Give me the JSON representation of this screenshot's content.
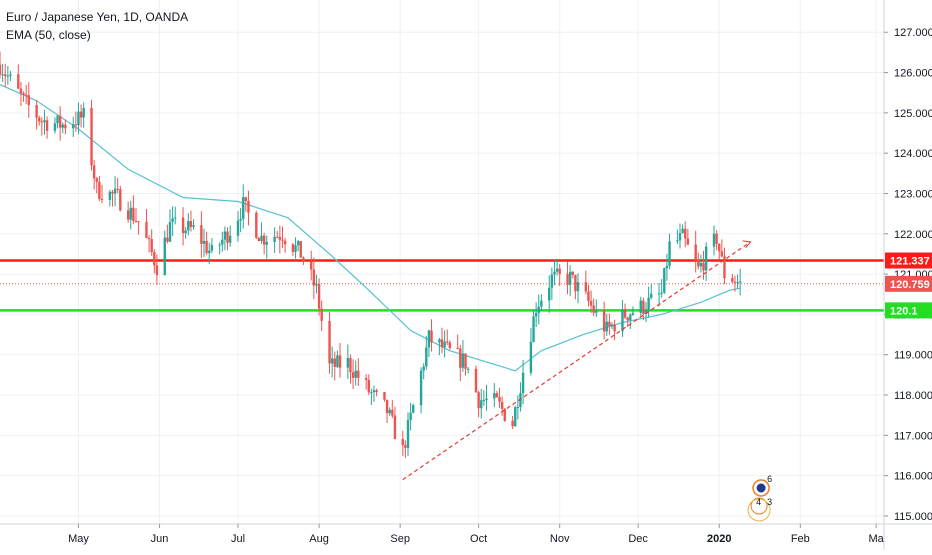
{
  "header": {
    "symbol_title": "Euro / Japanese Yen, 1D, OANDA",
    "indicator": "EMA (50, close)"
  },
  "colors": {
    "up": "#26a69a",
    "down": "#ef5350",
    "ema": "#56c1d2",
    "resistance": "#ff1a1a",
    "support": "#22dd22",
    "trendline": "#e53935",
    "price_line": "#ef5350",
    "grid": "#eef0f4"
  },
  "chart_data": {
    "type": "candlestick",
    "symbol": "Euro / Japanese Yen",
    "timeframe": "1D",
    "source": "OANDA",
    "ylim": [
      114.8,
      127.8
    ],
    "y_ticks": [
      115,
      116,
      117,
      118,
      119,
      120,
      121,
      122,
      123,
      124,
      125,
      126,
      127
    ],
    "y_tick_labels": [
      "115.000",
      "116.000",
      "117.000",
      "118.000",
      "119.000",
      "120.000",
      "121.000",
      "122.000",
      "123.000",
      "124.000",
      "125.000",
      "126.000",
      "127.000"
    ],
    "x_labels": [
      {
        "label": "May",
        "date": "2019-05-01"
      },
      {
        "label": "Jun",
        "date": "2019-06-01"
      },
      {
        "label": "Jul",
        "date": "2019-07-01"
      },
      {
        "label": "Aug",
        "date": "2019-08-01"
      },
      {
        "label": "Sep",
        "date": "2019-09-01"
      },
      {
        "label": "Oct",
        "date": "2019-10-01"
      },
      {
        "label": "Nov",
        "date": "2019-11-01"
      },
      {
        "label": "Dec",
        "date": "2019-12-01"
      },
      {
        "label": "2020",
        "date": "2020-01-01"
      },
      {
        "label": "Feb",
        "date": "2020-02-01"
      },
      {
        "label": "Ma",
        "date": "2020-03-01"
      }
    ],
    "xlim": [
      "2019-04-01",
      "2020-03-04"
    ],
    "close_path": [
      [
        "2019-04-01",
        126.2
      ],
      [
        "2019-04-10",
        125.3
      ],
      [
        "2019-04-17",
        124.8
      ],
      [
        "2019-04-25",
        124.7
      ],
      [
        "2019-05-03",
        124.9
      ],
      [
        "2019-05-08",
        123.1
      ],
      [
        "2019-05-16",
        122.9
      ],
      [
        "2019-05-24",
        122.3
      ],
      [
        "2019-05-31",
        121.2
      ],
      [
        "2019-06-05",
        122.2
      ],
      [
        "2019-06-14",
        122.1
      ],
      [
        "2019-06-21",
        121.5
      ],
      [
        "2019-06-28",
        122.1
      ],
      [
        "2019-07-03",
        122.7
      ],
      [
        "2019-07-10",
        121.9
      ],
      [
        "2019-07-18",
        122.0
      ],
      [
        "2019-07-25",
        121.5
      ],
      [
        "2019-07-31",
        120.6
      ],
      [
        "2019-08-05",
        118.7
      ],
      [
        "2019-08-12",
        118.8
      ],
      [
        "2019-08-20",
        118.1
      ],
      [
        "2019-08-27",
        117.6
      ],
      [
        "2019-09-02",
        116.6
      ],
      [
        "2019-09-06",
        117.7
      ],
      [
        "2019-09-12",
        119.4
      ],
      [
        "2019-09-19",
        119.1
      ],
      [
        "2019-09-26",
        118.8
      ],
      [
        "2019-10-01",
        117.9
      ],
      [
        "2019-10-08",
        117.8
      ],
      [
        "2019-10-14",
        117.3
      ],
      [
        "2019-10-18",
        118.6
      ],
      [
        "2019-10-23",
        120.2
      ],
      [
        "2019-10-29",
        120.9
      ],
      [
        "2019-11-05",
        120.9
      ],
      [
        "2019-11-12",
        120.3
      ],
      [
        "2019-11-19",
        119.6
      ],
      [
        "2019-11-26",
        120.0
      ],
      [
        "2019-12-03",
        120.2
      ],
      [
        "2019-12-10",
        120.5
      ],
      [
        "2019-12-13",
        121.7
      ],
      [
        "2019-12-18",
        121.9
      ],
      [
        "2019-12-24",
        121.1
      ],
      [
        "2019-12-31",
        121.9
      ],
      [
        "2020-01-03",
        121.0
      ],
      [
        "2020-01-06",
        120.9
      ],
      [
        "2020-01-08",
        120.8
      ],
      [
        "2020-01-09",
        120.759
      ]
    ],
    "ema_path": [
      [
        "2019-04-01",
        125.7
      ],
      [
        "2019-04-15",
        125.3
      ],
      [
        "2019-05-01",
        124.6
      ],
      [
        "2019-05-20",
        123.6
      ],
      [
        "2019-06-10",
        122.9
      ],
      [
        "2019-07-01",
        122.8
      ],
      [
        "2019-07-20",
        122.4
      ],
      [
        "2019-08-05",
        121.5
      ],
      [
        "2019-08-20",
        120.6
      ],
      [
        "2019-09-05",
        119.6
      ],
      [
        "2019-09-20",
        119.1
      ],
      [
        "2019-10-05",
        118.8
      ],
      [
        "2019-10-15",
        118.6
      ],
      [
        "2019-10-25",
        119.1
      ],
      [
        "2019-11-10",
        119.5
      ],
      [
        "2019-11-25",
        119.8
      ],
      [
        "2019-12-10",
        120.0
      ],
      [
        "2019-12-25",
        120.3
      ],
      [
        "2020-01-05",
        120.6
      ],
      [
        "2020-01-09",
        120.65
      ]
    ],
    "horizontal_levels": [
      {
        "name": "resistance",
        "value": 121.337,
        "label": "121.337"
      },
      {
        "name": "support",
        "value": 120.1,
        "label": "120.1"
      }
    ],
    "last_price": {
      "value": 120.759,
      "label": "120.759"
    },
    "trendline": {
      "from": [
        "2019-09-02",
        115.9
      ],
      "to": [
        "2020-01-13",
        121.8
      ]
    },
    "event_markers": [
      "6",
      "4",
      "3"
    ]
  }
}
